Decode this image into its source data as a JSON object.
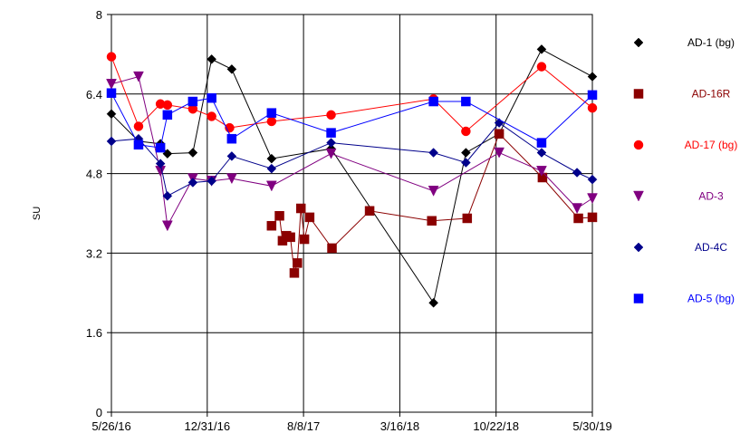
{
  "chart_data": {
    "type": "line",
    "title": "",
    "xlabel": "",
    "ylabel": "SU",
    "ylim": [
      0,
      8
    ],
    "yticks": [
      0,
      1.6,
      3.2,
      4.8,
      6.4,
      8
    ],
    "ytick_labels": [
      "0",
      "1.6",
      "3.2",
      "4.8",
      "6.4",
      "8"
    ],
    "xlim": [
      "2016-05-26",
      "2019-05-30"
    ],
    "xticks": [
      "2016-05-26",
      "2016-12-31",
      "2017-08-08",
      "2018-03-16",
      "2018-10-22",
      "2019-05-30"
    ],
    "xtick_labels": [
      "5/26/16",
      "12/31/16",
      "8/8/17",
      "3/16/18",
      "10/22/18",
      "5/30/19"
    ],
    "grid": true,
    "legend_position": "right",
    "series": [
      {
        "name": "AD-1 (bg)",
        "color": "#000000",
        "marker": "diamond",
        "points": [
          [
            "2016-05-26",
            6.0
          ],
          [
            "2016-07-27",
            5.45
          ],
          [
            "2016-09-15",
            5.4
          ],
          [
            "2016-10-01",
            5.2
          ],
          [
            "2016-11-28",
            5.22
          ],
          [
            "2017-01-10",
            7.1
          ],
          [
            "2017-02-25",
            6.9
          ],
          [
            "2017-05-27",
            5.1
          ],
          [
            "2017-10-10",
            5.3
          ],
          [
            "2018-06-01",
            2.2
          ],
          [
            "2018-08-14",
            5.22
          ],
          [
            "2018-10-29",
            5.6
          ],
          [
            "2019-02-03",
            7.3
          ],
          [
            "2019-05-30",
            6.75
          ]
        ]
      },
      {
        "name": "AD-16R",
        "color": "#8b0000",
        "marker": "square",
        "points": [
          [
            "2017-05-27",
            3.75
          ],
          [
            "2017-06-14",
            3.95
          ],
          [
            "2017-06-21",
            3.45
          ],
          [
            "2017-06-30",
            3.55
          ],
          [
            "2017-07-09",
            3.52
          ],
          [
            "2017-07-18",
            2.8
          ],
          [
            "2017-07-25",
            3.0
          ],
          [
            "2017-08-02",
            4.1
          ],
          [
            "2017-08-10",
            3.48
          ],
          [
            "2017-08-22",
            3.92
          ],
          [
            "2017-10-12",
            3.3
          ],
          [
            "2018-01-06",
            4.05
          ],
          [
            "2018-05-28",
            3.85
          ],
          [
            "2018-08-17",
            3.9
          ],
          [
            "2018-10-29",
            5.6
          ],
          [
            "2019-02-05",
            4.72
          ],
          [
            "2019-04-28",
            3.9
          ],
          [
            "2019-05-30",
            3.92
          ]
        ]
      },
      {
        "name": "AD-17 (bg)",
        "color": "#ff0000",
        "marker": "circle",
        "points": [
          [
            "2016-05-26",
            7.15
          ],
          [
            "2016-07-27",
            5.75
          ],
          [
            "2016-09-15",
            6.2
          ],
          [
            "2016-10-01",
            6.18
          ],
          [
            "2016-11-28",
            6.1
          ],
          [
            "2017-01-10",
            5.95
          ],
          [
            "2017-02-20",
            5.72
          ],
          [
            "2017-05-27",
            5.85
          ],
          [
            "2017-10-10",
            5.98
          ],
          [
            "2018-06-01",
            6.3
          ],
          [
            "2018-08-14",
            5.65
          ],
          [
            "2019-02-03",
            6.95
          ],
          [
            "2019-05-30",
            6.12
          ]
        ]
      },
      {
        "name": "AD-3",
        "color": "#800080",
        "marker": "triangle-down",
        "points": [
          [
            "2016-05-26",
            6.6
          ],
          [
            "2016-07-27",
            6.75
          ],
          [
            "2016-09-15",
            4.85
          ],
          [
            "2016-10-01",
            3.75
          ],
          [
            "2016-11-28",
            4.7
          ],
          [
            "2017-01-10",
            4.65
          ],
          [
            "2017-02-25",
            4.7
          ],
          [
            "2017-05-27",
            4.55
          ],
          [
            "2017-10-10",
            5.2
          ],
          [
            "2018-06-01",
            4.45
          ],
          [
            "2018-10-29",
            5.22
          ],
          [
            "2019-02-03",
            4.85
          ],
          [
            "2019-04-25",
            4.1
          ],
          [
            "2019-05-30",
            4.3
          ]
        ]
      },
      {
        "name": "AD-4C",
        "color": "#00008b",
        "marker": "diamond",
        "points": [
          [
            "2016-05-26",
            5.45
          ],
          [
            "2016-07-27",
            5.5
          ],
          [
            "2016-09-15",
            5.0
          ],
          [
            "2016-10-01",
            4.35
          ],
          [
            "2016-11-28",
            4.62
          ],
          [
            "2017-01-10",
            4.65
          ],
          [
            "2017-02-25",
            5.15
          ],
          [
            "2017-05-27",
            4.9
          ],
          [
            "2017-10-10",
            5.42
          ],
          [
            "2018-06-01",
            5.22
          ],
          [
            "2018-08-14",
            5.02
          ],
          [
            "2018-10-29",
            5.82
          ],
          [
            "2019-02-03",
            5.22
          ],
          [
            "2019-04-25",
            4.82
          ],
          [
            "2019-05-30",
            4.68
          ]
        ]
      },
      {
        "name": "AD-5 (bg)",
        "color": "#0000ff",
        "marker": "square",
        "points": [
          [
            "2016-05-26",
            6.42
          ],
          [
            "2016-07-27",
            5.38
          ],
          [
            "2016-09-15",
            5.32
          ],
          [
            "2016-10-01",
            5.98
          ],
          [
            "2016-11-28",
            6.25
          ],
          [
            "2017-01-10",
            6.32
          ],
          [
            "2017-02-25",
            5.5
          ],
          [
            "2017-05-27",
            6.02
          ],
          [
            "2017-10-10",
            5.62
          ],
          [
            "2018-06-01",
            6.25
          ],
          [
            "2018-08-14",
            6.25
          ],
          [
            "2019-02-03",
            5.42
          ],
          [
            "2019-05-30",
            6.38
          ]
        ]
      }
    ]
  }
}
